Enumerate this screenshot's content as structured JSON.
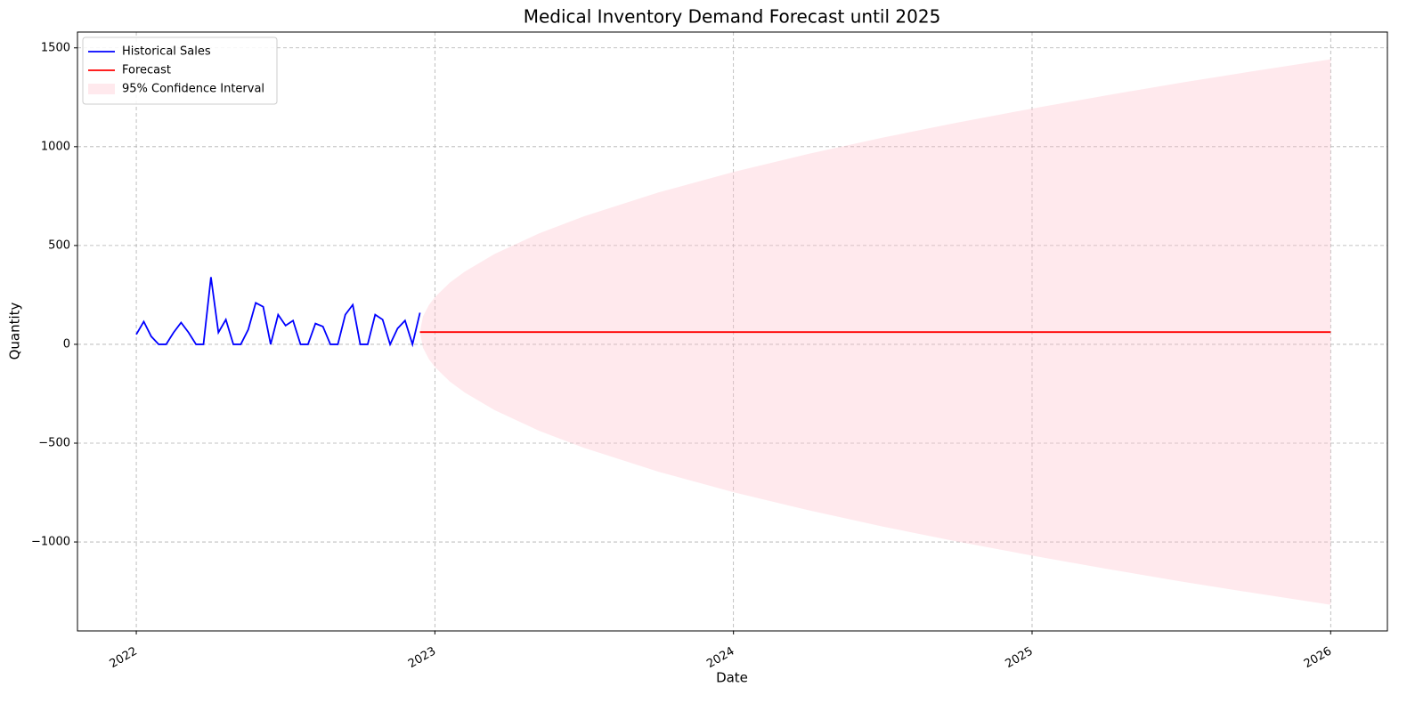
{
  "chart_data": {
    "type": "line",
    "title": "Medical Inventory Demand Forecast until 2025",
    "x_label": "Date",
    "y_label": "Quantity",
    "xlim": [
      2021.803,
      2026.19
    ],
    "ylim": [
      -1450,
      1580
    ],
    "xticks": [
      2022,
      2023,
      2024,
      2025,
      2026
    ],
    "yticks": [
      {
        "value": -1000,
        "label": "−1000"
      },
      {
        "value": -500,
        "label": "−500"
      },
      0,
      500,
      1000,
      1500
    ],
    "grid": true,
    "legend": "upper left",
    "series": [
      {
        "name": "Historical Sales",
        "color": "#0000ff",
        "x": [
          2022,
          2022.025,
          2022.05,
          2022.075,
          2022.1,
          2022.125,
          2022.15,
          2022.175,
          2022.2,
          2022.225,
          2022.25,
          2022.275,
          2022.3,
          2022.325,
          2022.35,
          2022.375,
          2022.4,
          2022.425,
          2022.45,
          2022.475,
          2022.5,
          2022.525,
          2022.55,
          2022.575,
          2022.6,
          2022.625,
          2022.65,
          2022.675,
          2022.7,
          2022.725,
          2022.75,
          2022.775,
          2022.8,
          2022.825,
          2022.85,
          2022.875,
          2022.9,
          2022.925,
          2022.95
        ],
        "values": [
          50,
          115,
          40,
          0,
          0,
          60,
          110,
          60,
          0,
          0,
          340,
          60,
          125,
          0,
          0,
          75,
          210,
          190,
          0,
          150,
          95,
          120,
          0,
          0,
          105,
          90,
          0,
          0,
          150,
          200,
          0,
          0,
          150,
          125,
          0,
          80,
          120,
          0,
          160
        ]
      },
      {
        "name": "Forecast",
        "color": "#ff0000",
        "x": [
          2022.95,
          2026
        ],
        "values": [
          62,
          62
        ]
      }
    ],
    "band": {
      "name": "95% Confidence Interval",
      "color": "#ffc0cb",
      "x": [
        2022.95,
        2022.96,
        2022.98,
        2023.0,
        2023.05,
        2023.1,
        2023.2,
        2023.35,
        2023.5,
        2023.75,
        2024.0,
        2024.25,
        2024.5,
        2024.75,
        2025.0,
        2025.25,
        2025.5,
        2025.75,
        2026.0
      ],
      "upper": [
        62,
        141,
        199,
        239,
        312,
        368,
        457,
        562,
        648,
        769,
        872,
        963,
        1046,
        1122,
        1193,
        1260,
        1324,
        1384,
        1442
      ],
      "lower": [
        62,
        -17,
        -75,
        -115,
        -188,
        -244,
        -333,
        -438,
        -524,
        -645,
        -748,
        -839,
        -922,
        -998,
        -1069,
        -1136,
        -1200,
        -1260,
        -1318
      ]
    }
  }
}
